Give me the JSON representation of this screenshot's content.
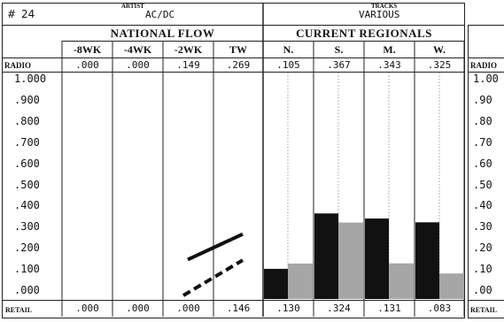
{
  "header": {
    "hash_symbol": "#",
    "number": "24",
    "artist_label": "ARTIST",
    "artist": "AC/DC",
    "tracks_label": "TRACKS",
    "tracks": "VARIOUS"
  },
  "national_flow": {
    "title": "NATIONAL FLOW",
    "columns": [
      "-8WK",
      "-4WK",
      "-2WK",
      "TW"
    ],
    "radio": [
      ".000",
      ".000",
      ".149",
      ".269"
    ],
    "retail": [
      ".000",
      ".000",
      ".000",
      ".146"
    ]
  },
  "current_regionals": {
    "title": "CURRENT REGIONALS",
    "columns": [
      "N.",
      "S.",
      "M.",
      "W."
    ],
    "radio": [
      ".105",
      ".367",
      ".343",
      ".325"
    ],
    "retail": [
      ".130",
      ".324",
      ".131",
      ".083"
    ]
  },
  "row_labels": {
    "radio": "RADIO",
    "retail": "RETAIL"
  },
  "y_axis": {
    "ticks": [
      "1.000",
      ".900",
      ".800",
      ".700",
      ".600",
      ".500",
      ".400",
      ".300",
      ".200",
      ".100",
      ".000"
    ],
    "right_ticks": [
      "1.00",
      ".90",
      ".80",
      ".70",
      ".60",
      ".50",
      ".40",
      ".30",
      ".20",
      ".10",
      ".00"
    ]
  },
  "chart_data": {
    "type": "bar",
    "categories": [
      "N.",
      "S.",
      "M.",
      "W."
    ],
    "series": [
      {
        "name": "RADIO",
        "values": [
          0.105,
          0.367,
          0.343,
          0.325
        ]
      },
      {
        "name": "RETAIL",
        "values": [
          0.13,
          0.324,
          0.131,
          0.083
        ]
      }
    ],
    "national_flow_lines": {
      "x": [
        "-8WK",
        "-4WK",
        "-2WK",
        "TW"
      ],
      "radio": [
        0.0,
        0.0,
        0.149,
        0.269
      ],
      "retail": [
        0.0,
        0.0,
        0.0,
        0.146
      ]
    },
    "ylim": [
      0,
      1.0
    ],
    "colors": {
      "radio": "#111111",
      "retail": "#a6a6a6"
    }
  }
}
